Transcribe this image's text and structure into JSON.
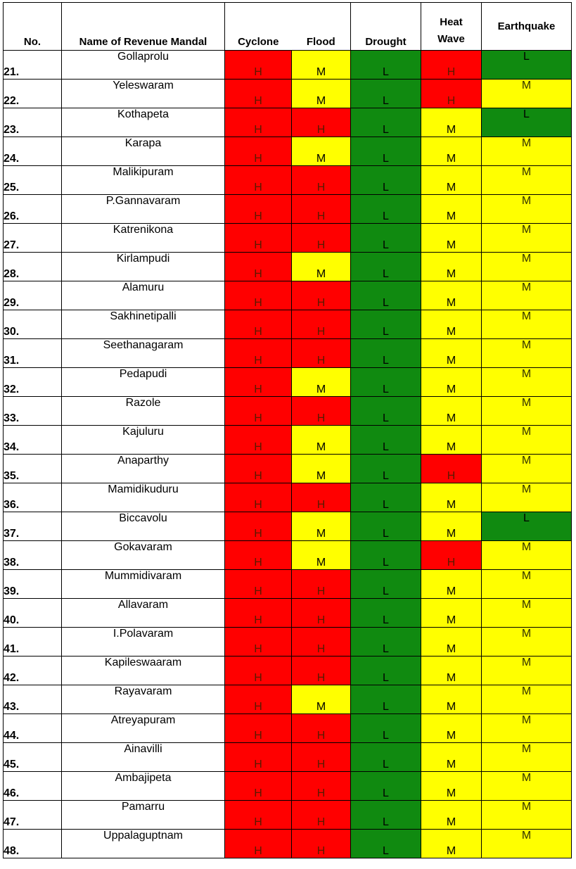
{
  "table": {
    "headers": {
      "no": "No.",
      "name": "Name of Revenue Mandal",
      "cyclone": "Cyclone",
      "flood": "Flood",
      "drought": "Drought",
      "heat_wave_1": "Heat",
      "heat_wave_2": "Wave",
      "earthquake": "Earthquake"
    },
    "level_colors": {
      "H": "#ff0000",
      "M": "#ffff00",
      "L": "#108a10"
    },
    "rows": [
      {
        "no": "21.",
        "name": "Gollaprolu",
        "cyclone": "H",
        "flood": "M",
        "drought": "L",
        "heat_wave": "H",
        "earthquake": "L"
      },
      {
        "no": "22.",
        "name": "Yeleswaram",
        "cyclone": "H",
        "flood": "M",
        "drought": "L",
        "heat_wave": "H",
        "earthquake": "M"
      },
      {
        "no": "23.",
        "name": "Kothapeta",
        "cyclone": "H",
        "flood": "H",
        "drought": "L",
        "heat_wave": "M",
        "earthquake": "L"
      },
      {
        "no": "24.",
        "name": "Karapa",
        "cyclone": "H",
        "flood": "M",
        "drought": "L",
        "heat_wave": "M",
        "earthquake": "M"
      },
      {
        "no": "25.",
        "name": "Malikipuram",
        "cyclone": "H",
        "flood": "H",
        "drought": "L",
        "heat_wave": "M",
        "earthquake": "M"
      },
      {
        "no": "26.",
        "name": "P.Gannavaram",
        "cyclone": "H",
        "flood": "H",
        "drought": "L",
        "heat_wave": "M",
        "earthquake": "M"
      },
      {
        "no": "27.",
        "name": "Katrenikona",
        "cyclone": "H",
        "flood": "H",
        "drought": "L",
        "heat_wave": "M",
        "earthquake": "M"
      },
      {
        "no": "28.",
        "name": "Kirlampudi",
        "cyclone": "H",
        "flood": "M",
        "drought": "L",
        "heat_wave": "M",
        "earthquake": "M"
      },
      {
        "no": "29.",
        "name": "Alamuru",
        "cyclone": "H",
        "flood": "H",
        "drought": "L",
        "heat_wave": "M",
        "earthquake": "M"
      },
      {
        "no": "30.",
        "name": "Sakhinetipalli",
        "cyclone": "H",
        "flood": "H",
        "drought": "L",
        "heat_wave": "M",
        "earthquake": "M"
      },
      {
        "no": "31.",
        "name": "Seethanagaram",
        "cyclone": "H",
        "flood": "H",
        "drought": "L",
        "heat_wave": "M",
        "earthquake": "M"
      },
      {
        "no": "32.",
        "name": "Pedapudi",
        "cyclone": "H",
        "flood": "M",
        "drought": "L",
        "heat_wave": "M",
        "earthquake": "M"
      },
      {
        "no": "33.",
        "name": "Razole",
        "cyclone": "H",
        "flood": "H",
        "drought": "L",
        "heat_wave": "M",
        "earthquake": "M"
      },
      {
        "no": "34.",
        "name": "Kajuluru",
        "cyclone": "H",
        "flood": "M",
        "drought": "L",
        "heat_wave": "M",
        "earthquake": "M"
      },
      {
        "no": "35.",
        "name": "Anaparthy",
        "cyclone": "H",
        "flood": "M",
        "drought": "L",
        "heat_wave": "H",
        "earthquake": "M"
      },
      {
        "no": "36.",
        "name": "Mamidikuduru",
        "cyclone": "H",
        "flood": "H",
        "drought": "L",
        "heat_wave": "M",
        "earthquake": "M"
      },
      {
        "no": "37.",
        "name": "Biccavolu",
        "cyclone": "H",
        "flood": "M",
        "drought": "L",
        "heat_wave": "M",
        "earthquake": "L"
      },
      {
        "no": "38.",
        "name": "Gokavaram",
        "cyclone": "H",
        "flood": "M",
        "drought": "L",
        "heat_wave": "H",
        "earthquake": "M"
      },
      {
        "no": "39.",
        "name": "Mummidivaram",
        "cyclone": "H",
        "flood": "H",
        "drought": "L",
        "heat_wave": "M",
        "earthquake": "M"
      },
      {
        "no": "40.",
        "name": "Allavaram",
        "cyclone": "H",
        "flood": "H",
        "drought": "L",
        "heat_wave": "M",
        "earthquake": "M"
      },
      {
        "no": "41.",
        "name": "I.Polavaram",
        "cyclone": "H",
        "flood": "H",
        "drought": "L",
        "heat_wave": "M",
        "earthquake": "M"
      },
      {
        "no": "42.",
        "name": "Kapileswaaram",
        "cyclone": "H",
        "flood": "H",
        "drought": "L",
        "heat_wave": "M",
        "earthquake": "M"
      },
      {
        "no": "43.",
        "name": "Rayavaram",
        "cyclone": "H",
        "flood": "M",
        "drought": "L",
        "heat_wave": "M",
        "earthquake": "M"
      },
      {
        "no": "44.",
        "name": "Atreyapuram",
        "cyclone": "H",
        "flood": "H",
        "drought": "L",
        "heat_wave": "M",
        "earthquake": "M"
      },
      {
        "no": "45.",
        "name": "Ainavilli",
        "cyclone": "H",
        "flood": "H",
        "drought": "L",
        "heat_wave": "M",
        "earthquake": "M"
      },
      {
        "no": "46.",
        "name": "Ambajipeta",
        "cyclone": "H",
        "flood": "H",
        "drought": "L",
        "heat_wave": "M",
        "earthquake": "M"
      },
      {
        "no": "47.",
        "name": "Pamarru",
        "cyclone": "H",
        "flood": "H",
        "drought": "L",
        "heat_wave": "M",
        "earthquake": "M"
      },
      {
        "no": "48.",
        "name": "Uppalaguptnam",
        "cyclone": "H",
        "flood": "H",
        "drought": "L",
        "heat_wave": "M",
        "earthquake": "M"
      }
    ]
  }
}
